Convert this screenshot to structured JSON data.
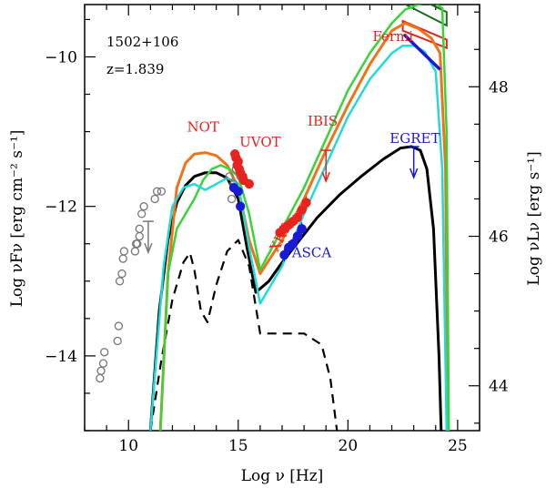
{
  "chart_data": {
    "type": "scatter",
    "title": "",
    "source_name": "1502+106",
    "redshift_label": "z=1.839",
    "xlabel": "Log ν  [Hz]",
    "ylabel": "Log νFν  [erg cm⁻² s⁻¹]",
    "y2label": "Log νLν  [erg s⁻¹]",
    "xlim": [
      8,
      26
    ],
    "ylim": [
      -15,
      -9.3
    ],
    "y2lim": [
      43.4,
      49.1
    ],
    "x_ticks": [
      10,
      15,
      20,
      25
    ],
    "x_tick_labels": [
      "10",
      "15",
      "20",
      "25"
    ],
    "y_ticks": [
      -14,
      -12,
      -10
    ],
    "y_tick_labels": [
      "−14",
      "−12",
      "−10"
    ],
    "y2_ticks": [
      44,
      46,
      48
    ],
    "y2_tick_labels": [
      "44",
      "46",
      "48"
    ],
    "annotations": [
      {
        "text": "Fermi",
        "color": "#e8231e",
        "x": 22.05,
        "y": -9.79
      },
      {
        "text": "NOT",
        "color": "#e8231e",
        "x": 13.4,
        "y": -11.0
      },
      {
        "text": "UVOT",
        "color": "#e8231e",
        "x": 16.0,
        "y": -11.2
      },
      {
        "text": "IBIS",
        "color": "#e8231e",
        "x": 18.85,
        "y": -10.92
      },
      {
        "text": "EGRET",
        "color": "#1a1ad6",
        "x": 23.05,
        "y": -11.15
      },
      {
        "text": "XRT",
        "color": "#e8231e",
        "x": 17.1,
        "y": -12.45,
        "rotate": -62
      },
      {
        "text": "ASCA",
        "color": "#1a1ad6",
        "x": 18.35,
        "y": -12.68
      }
    ],
    "series": [
      {
        "name": "archival radio-optical",
        "type": "scatter",
        "marker": "open-circle",
        "color": "#777777",
        "x": [
          8.7,
          8.75,
          8.85,
          8.9,
          9.5,
          9.55,
          9.6,
          9.7,
          9.75,
          9.8,
          10.3,
          10.35,
          10.4,
          10.5,
          10.5,
          10.6,
          10.7,
          11.2,
          11.3,
          11.5,
          14.6,
          14.8,
          14.9,
          15.1,
          14.7
        ],
        "y": [
          -14.3,
          -14.2,
          -14.1,
          -13.95,
          -13.8,
          -13.6,
          -13.0,
          -12.9,
          -12.7,
          -12.6,
          -12.6,
          -12.5,
          -12.5,
          -12.4,
          -12.3,
          -12.1,
          -12.0,
          -11.9,
          -11.8,
          -11.8,
          -11.6,
          -11.7,
          -11.5,
          -11.6,
          -11.9
        ]
      },
      {
        "name": "NOT / UVOT",
        "type": "scatter",
        "marker": "filled-circle",
        "color": "#e8231e",
        "x": [
          14.85,
          14.9,
          14.95,
          15.0,
          15.05,
          15.1,
          15.2,
          15.25,
          15.5
        ],
        "y": [
          -11.3,
          -11.35,
          -11.45,
          -11.4,
          -11.5,
          -11.55,
          -11.6,
          -11.65,
          -11.7
        ]
      },
      {
        "name": "low-state optical",
        "type": "scatter",
        "marker": "filled-circle",
        "color": "#1a1ad6",
        "x": [
          14.8,
          15.0,
          15.1
        ],
        "y": [
          -11.75,
          -11.8,
          -12.0
        ]
      },
      {
        "name": "XRT",
        "type": "scatter",
        "marker": "filled-circle",
        "color": "#e8231e",
        "x": [
          16.9,
          17.1,
          17.3,
          17.5,
          17.7,
          17.9,
          18.1
        ],
        "y": [
          -12.35,
          -12.3,
          -12.25,
          -12.2,
          -12.15,
          -12.05,
          -11.95
        ]
      },
      {
        "name": "ASCA",
        "type": "scatter",
        "marker": "filled-circle",
        "color": "#1a1ad6",
        "x": [
          17.1,
          17.3,
          17.5,
          17.7,
          17.9
        ],
        "y": [
          -12.65,
          -12.55,
          -12.5,
          -12.4,
          -12.3
        ]
      },
      {
        "name": "Fermi (black)",
        "type": "line",
        "color": "#000000",
        "width": 3,
        "x": [
          11.0,
          11.4,
          11.8,
          12.2,
          12.6,
          13.0,
          13.5,
          14.0,
          14.5,
          15.0,
          15.4,
          15.8,
          16.4,
          17.0,
          17.8,
          18.6,
          19.6,
          20.6,
          21.6,
          22.4,
          22.9,
          23.3,
          23.6,
          23.9,
          24.15,
          24.25
        ],
        "y": [
          -15.0,
          -13.4,
          -12.45,
          -11.95,
          -11.72,
          -11.6,
          -11.55,
          -11.55,
          -11.62,
          -11.9,
          -12.55,
          -13.15,
          -13.0,
          -12.75,
          -12.45,
          -12.15,
          -11.85,
          -11.6,
          -11.37,
          -11.22,
          -11.2,
          -11.25,
          -11.5,
          -12.3,
          -14.0,
          -15.0
        ]
      },
      {
        "name": "Synchrotron dashed",
        "type": "line",
        "color": "#000000",
        "width": 2.2,
        "dash": "10,7",
        "x": [
          11.0,
          11.5,
          12.0,
          12.5,
          12.8,
          13.0,
          13.3,
          13.6,
          14.0,
          14.5,
          15.0,
          15.5,
          16.0,
          17.0,
          18.0,
          18.8,
          19.2,
          19.5
        ],
        "y": [
          -15.0,
          -14.05,
          -13.25,
          -12.75,
          -12.62,
          -12.85,
          -13.4,
          -13.55,
          -13.05,
          -12.6,
          -12.45,
          -12.8,
          -13.7,
          -13.7,
          -13.7,
          -13.85,
          -14.3,
          -15.0
        ]
      },
      {
        "name": "Fermi-high (orange)",
        "type": "line",
        "color": "#f07319",
        "width": 3,
        "x": [
          11.45,
          11.8,
          12.2,
          12.6,
          13.0,
          13.5,
          14.0,
          14.5,
          15.0,
          15.5,
          16.0,
          17.0,
          18.0,
          19.0,
          20.0,
          21.0,
          22.0,
          22.6,
          23.2,
          23.8,
          24.2,
          24.45,
          24.55
        ],
        "y": [
          -15.0,
          -12.9,
          -11.75,
          -11.42,
          -11.3,
          -11.28,
          -11.32,
          -11.45,
          -11.75,
          -12.45,
          -12.9,
          -12.45,
          -11.9,
          -11.25,
          -10.65,
          -10.1,
          -9.65,
          -9.55,
          -9.62,
          -9.75,
          -9.95,
          -11.5,
          -15.0
        ]
      },
      {
        "name": "Fermi-high (green)",
        "type": "line",
        "color": "#39d439",
        "width": 2.5,
        "x": [
          11.45,
          11.8,
          12.2,
          12.6,
          13.0,
          13.4,
          13.8,
          14.2,
          14.6,
          15.0,
          15.5,
          16.0,
          17.0,
          18.0,
          19.0,
          20.0,
          21.0,
          22.0,
          22.6,
          23.2,
          23.8,
          24.3,
          24.5,
          24.6
        ],
        "y": [
          -15.0,
          -12.9,
          -12.3,
          -12.1,
          -11.9,
          -11.65,
          -11.5,
          -11.45,
          -11.5,
          -11.6,
          -12.1,
          -12.85,
          -12.3,
          -11.75,
          -11.1,
          -10.45,
          -9.95,
          -9.55,
          -9.37,
          -9.3,
          -9.25,
          -9.35,
          -11.0,
          -15.0
        ]
      },
      {
        "name": "Fermi-low (cyan)",
        "type": "line",
        "color": "#1fdcdc",
        "width": 2.5,
        "x": [
          11.0,
          11.6,
          12.0,
          12.5,
          13.0,
          13.5,
          14.0,
          14.5,
          15.0,
          15.5,
          16.0,
          17.0,
          18.0,
          19.0,
          20.0,
          21.0,
          22.0,
          22.5,
          23.0,
          23.5,
          24.0,
          24.3,
          24.5
        ],
        "y": [
          -15.0,
          -12.8,
          -12.0,
          -11.75,
          -11.7,
          -11.78,
          -11.7,
          -11.62,
          -11.7,
          -12.55,
          -13.3,
          -12.8,
          -12.1,
          -11.45,
          -10.8,
          -10.3,
          -9.95,
          -9.85,
          -9.85,
          -9.93,
          -10.2,
          -11.5,
          -15.0
        ]
      },
      {
        "name": "Fermi spectrum (blue)",
        "type": "line",
        "color": "#1a1ad6",
        "width": 3.5,
        "x": [
          22.55,
          24.2
        ],
        "y": [
          -9.7,
          -10.17
        ]
      }
    ],
    "bowties": [
      {
        "name": "Fermi dark green",
        "color": "#1e6b1e",
        "x": [
          22.5,
          24.5,
          24.5,
          22.5
        ],
        "y": [
          -9.28,
          -9.58,
          -9.4,
          -9.12
        ]
      },
      {
        "name": "Fermi red",
        "color": "#e8231e",
        "x": [
          22.5,
          24.5,
          24.5,
          22.5
        ],
        "y": [
          -9.65,
          -9.88,
          -9.77,
          -9.52
        ]
      }
    ],
    "upper_limits": [
      {
        "name": "IBIS",
        "color": "#e8231e",
        "x": 19.0,
        "y": -11.25
      },
      {
        "name": "EGRET",
        "color": "#1a1ad6",
        "x": 23.0,
        "y": -11.2
      },
      {
        "name": "radio-limit",
        "color": "#777777",
        "x": 10.9,
        "y": -12.2
      }
    ]
  }
}
